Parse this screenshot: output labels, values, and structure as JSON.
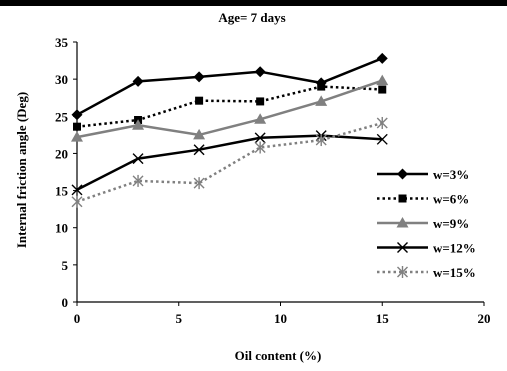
{
  "chart_data": {
    "type": "line",
    "title": "Age= 7 days",
    "xlabel": "Oil content (%)",
    "ylabel": "Internal friction angle (Deg)",
    "xlim": [
      0,
      20
    ],
    "ylim": [
      0,
      35
    ],
    "x_ticks": [
      "0",
      "5",
      "10",
      "15",
      "20"
    ],
    "y_ticks": [
      "0",
      "5",
      "10",
      "15",
      "20",
      "25",
      "30",
      "35"
    ],
    "grid": false,
    "legend_position": "right",
    "x": [
      0,
      3,
      6,
      9,
      12,
      15
    ],
    "series": [
      {
        "name": "w=3%",
        "values": [
          25.2,
          29.7,
          30.3,
          31.0,
          29.5,
          32.8
        ],
        "color": "#000000",
        "line": "solid",
        "marker": "diamond"
      },
      {
        "name": "w=6%",
        "values": [
          23.6,
          24.5,
          27.1,
          27.0,
          29.0,
          28.6
        ],
        "color": "#000000",
        "line": "dotted",
        "marker": "square"
      },
      {
        "name": "w=9%",
        "values": [
          22.2,
          23.8,
          22.5,
          24.6,
          27.0,
          29.8
        ],
        "color": "#808080",
        "line": "solid",
        "marker": "triangle"
      },
      {
        "name": "w=12%",
        "values": [
          15.1,
          19.3,
          20.5,
          22.1,
          22.4,
          21.9
        ],
        "color": "#000000",
        "line": "solid",
        "marker": "x"
      },
      {
        "name": "w=15%",
        "values": [
          13.5,
          16.3,
          16.0,
          20.8,
          21.8,
          24.1
        ],
        "color": "#808080",
        "line": "dotted",
        "marker": "asterisk"
      }
    ]
  }
}
